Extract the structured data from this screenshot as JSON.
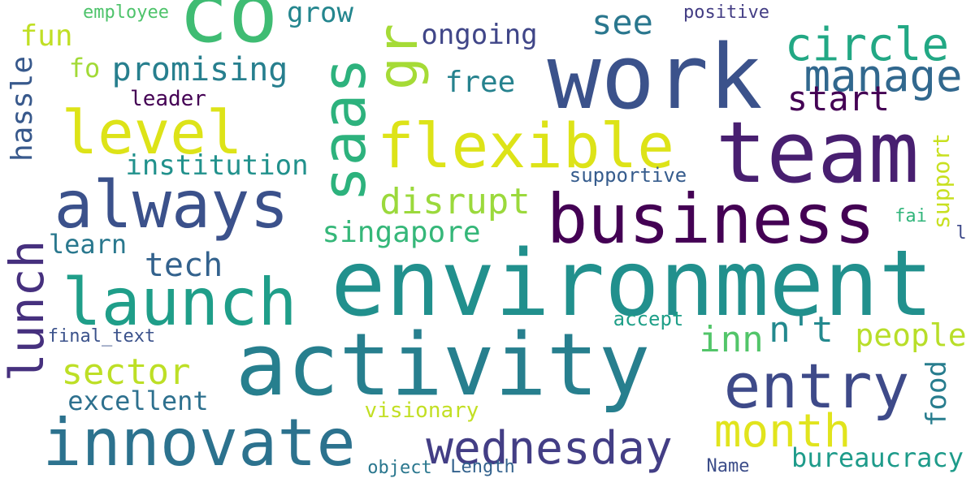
{
  "palette": {
    "background": "#ffffff",
    "deep_purple": "#440154",
    "indigo": "#46327e",
    "blue": "#365c8d",
    "teal_blue": "#277f8e",
    "teal": "#1fa187",
    "green": "#4ac16d",
    "lime": "#a0da39",
    "yellow": "#dde318"
  },
  "words": [
    {
      "text": "co",
      "color": "#3fbc73"
    },
    {
      "text": "work",
      "color": "#3b528b"
    },
    {
      "text": "team",
      "color": "#481f70"
    },
    {
      "text": "environment",
      "color": "#21908d"
    },
    {
      "text": "activity",
      "color": "#277f8e"
    },
    {
      "text": "business",
      "color": "#440154"
    },
    {
      "text": "always",
      "color": "#3b518b"
    },
    {
      "text": "flexible",
      "color": "#dde318"
    },
    {
      "text": "launch",
      "color": "#1f9e89"
    },
    {
      "text": "innovate",
      "color": "#2c728e"
    },
    {
      "text": "entry",
      "color": "#3e4a89"
    },
    {
      "text": "saas",
      "color": "#2db27d"
    },
    {
      "text": "level",
      "color": "#dde318"
    },
    {
      "text": "gr",
      "color": "#a5db36"
    },
    {
      "text": "circle",
      "color": "#22a884"
    },
    {
      "text": "manage",
      "color": "#31688e"
    },
    {
      "text": "wednesday",
      "color": "#433e85"
    },
    {
      "text": "month",
      "color": "#e1e41d"
    },
    {
      "text": "lunch",
      "color": "#46307e"
    },
    {
      "text": "disrupt",
      "color": "#9bd93c"
    },
    {
      "text": "sector",
      "color": "#bddf26"
    },
    {
      "text": "promising",
      "color": "#277f8e"
    },
    {
      "text": "see",
      "color": "#2a778e"
    },
    {
      "text": "start",
      "color": "#440154"
    },
    {
      "text": "tech",
      "color": "#33628d"
    },
    {
      "text": "inn",
      "color": "#52c569"
    },
    {
      "text": "n't",
      "color": "#23898e"
    },
    {
      "text": "people",
      "color": "#b8de29"
    },
    {
      "text": "singapore",
      "color": "#35b779"
    },
    {
      "text": "institution",
      "color": "#21918c"
    },
    {
      "text": "excellent",
      "color": "#2d708e"
    },
    {
      "text": "ongoing",
      "color": "#404688"
    },
    {
      "text": "free",
      "color": "#26828e"
    },
    {
      "text": "fun",
      "color": "#c0df25"
    },
    {
      "text": "grow",
      "color": "#24868e"
    },
    {
      "text": "hassle",
      "color": "#38598c"
    },
    {
      "text": "learn",
      "color": "#2a788e"
    },
    {
      "text": "bureaucracy",
      "color": "#1e9b8a"
    },
    {
      "text": "food",
      "color": "#287d8e"
    },
    {
      "text": "fo",
      "color": "#a2da37"
    },
    {
      "text": "leader",
      "color": "#440154"
    },
    {
      "text": "supportive",
      "color": "#365c8d"
    },
    {
      "text": "support",
      "color": "#c8e020"
    },
    {
      "text": "visionary",
      "color": "#c2df23"
    },
    {
      "text": "accept",
      "color": "#1f9f88"
    },
    {
      "text": "final_text",
      "color": "#3b528b"
    },
    {
      "text": "employee",
      "color": "#4ec36b"
    },
    {
      "text": "positive",
      "color": "#433d84"
    },
    {
      "text": "object",
      "color": "#2a778e"
    },
    {
      "text": "Length",
      "color": "#33628d"
    },
    {
      "text": "Name",
      "color": "#3d4e8a"
    },
    {
      "text": "fai",
      "color": "#31b57b"
    },
    {
      "text": "l",
      "color": "#3e4989"
    }
  ]
}
